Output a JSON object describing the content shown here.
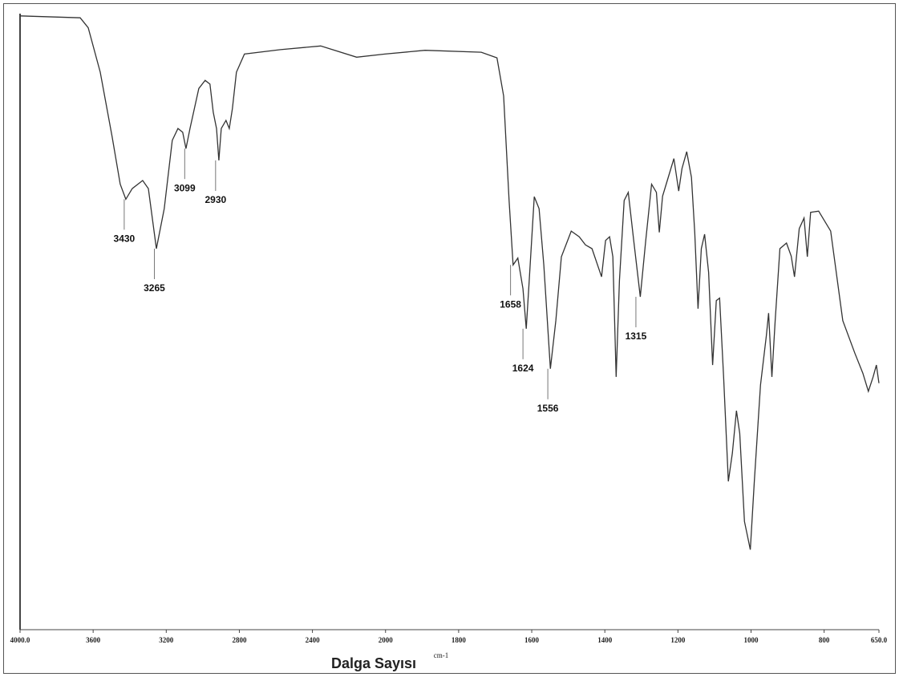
{
  "chart_data": {
    "type": "line",
    "xlabel": "Dalga Sayısı",
    "xunit": "cm-1",
    "xlim": [
      4000,
      650
    ],
    "xscale_break": 2000,
    "ylim": [
      0,
      100
    ],
    "xticks": [
      {
        "value": 4000,
        "label": "4000.0"
      },
      3600,
      3200,
      2800,
      2400,
      2000,
      1800,
      1600,
      1400,
      1200,
      1000,
      800,
      {
        "value": 650,
        "label": "650.0"
      }
    ],
    "color": "#333333",
    "x": [
      4000,
      3671,
      3627,
      3561,
      3496,
      3452,
      3421,
      3386,
      3329,
      3298,
      3254,
      3211,
      3167,
      3136,
      3110,
      3092,
      3070,
      3022,
      2987,
      2961,
      2943,
      2925,
      2912,
      2899,
      2873,
      2855,
      2838,
      2816,
      2772,
      2575,
      2355,
      2158,
      2004,
      1892,
      1738,
      1695,
      1677,
      1662,
      1651,
      1638,
      1624,
      1615,
      1607,
      1593,
      1580,
      1567,
      1549,
      1534,
      1519,
      1492,
      1470,
      1453,
      1435,
      1420,
      1409,
      1398,
      1387,
      1378,
      1369,
      1360,
      1347,
      1336,
      1321,
      1303,
      1288,
      1272,
      1259,
      1251,
      1242,
      1229,
      1211,
      1198,
      1189,
      1176,
      1163,
      1154,
      1145,
      1136,
      1127,
      1116,
      1105,
      1095,
      1086,
      1075,
      1062,
      1051,
      1040,
      1031,
      1018,
      1002,
      991,
      974,
      958,
      952,
      943,
      934,
      921,
      903,
      890,
      881,
      868,
      855,
      846,
      837,
      815,
      782,
      749,
      716,
      694,
      679,
      666,
      657,
      650
    ],
    "values": [
      98.1,
      97.8,
      96.2,
      89.1,
      78.8,
      71.2,
      68.8,
      70.5,
      71.8,
      70.5,
      60.9,
      67.3,
      78.2,
      80.1,
      79.5,
      76.9,
      80.1,
      86.5,
      87.8,
      87.2,
      82.7,
      80.1,
      75.0,
      80.1,
      81.4,
      80.1,
      83.3,
      89.1,
      92.0,
      92.7,
      93.3,
      91.5,
      92.0,
      92.6,
      92.3,
      91.4,
      85.3,
      68.6,
      58.3,
      59.4,
      54.5,
      48.1,
      55.8,
      69.2,
      67.3,
      58.3,
      41.7,
      49.4,
      59.6,
      63.7,
      62.8,
      61.5,
      60.9,
      58.3,
      56.4,
      62.2,
      62.8,
      59.6,
      40.4,
      55.8,
      68.6,
      69.9,
      62.2,
      53.2,
      62.2,
      71.2,
      69.9,
      63.5,
      69.3,
      71.8,
      75.3,
      70.1,
      73.7,
      76.4,
      72.3,
      63.5,
      51.3,
      60.9,
      63.2,
      57.1,
      42.3,
      52.6,
      53.0,
      40.4,
      23.7,
      28.2,
      35.0,
      31.4,
      17.3,
      12.8,
      23.7,
      39.1,
      47.0,
      50.6,
      40.4,
      49.4,
      60.9,
      61.8,
      59.7,
      56.4,
      64.1,
      65.8,
      59.6,
      66.7,
      66.9,
      63.7,
      49.4,
      44.2,
      41.0,
      38.1,
      40.4,
      42.3,
      39.4
    ],
    "annotations": [
      {
        "x": 3430,
        "y": 68.8,
        "label": "3430"
      },
      {
        "x": 3265,
        "y": 60.9,
        "label": "3265"
      },
      {
        "x": 3099,
        "y": 76.9,
        "label": "3099"
      },
      {
        "x": 2930,
        "y": 75.0,
        "label": "2930"
      },
      {
        "x": 1658,
        "y": 58.3,
        "label": "1658"
      },
      {
        "x": 1624,
        "y": 48.1,
        "label": "1624"
      },
      {
        "x": 1556,
        "y": 41.7,
        "label": "1556"
      },
      {
        "x": 1315,
        "y": 53.2,
        "label": "1315"
      }
    ]
  }
}
